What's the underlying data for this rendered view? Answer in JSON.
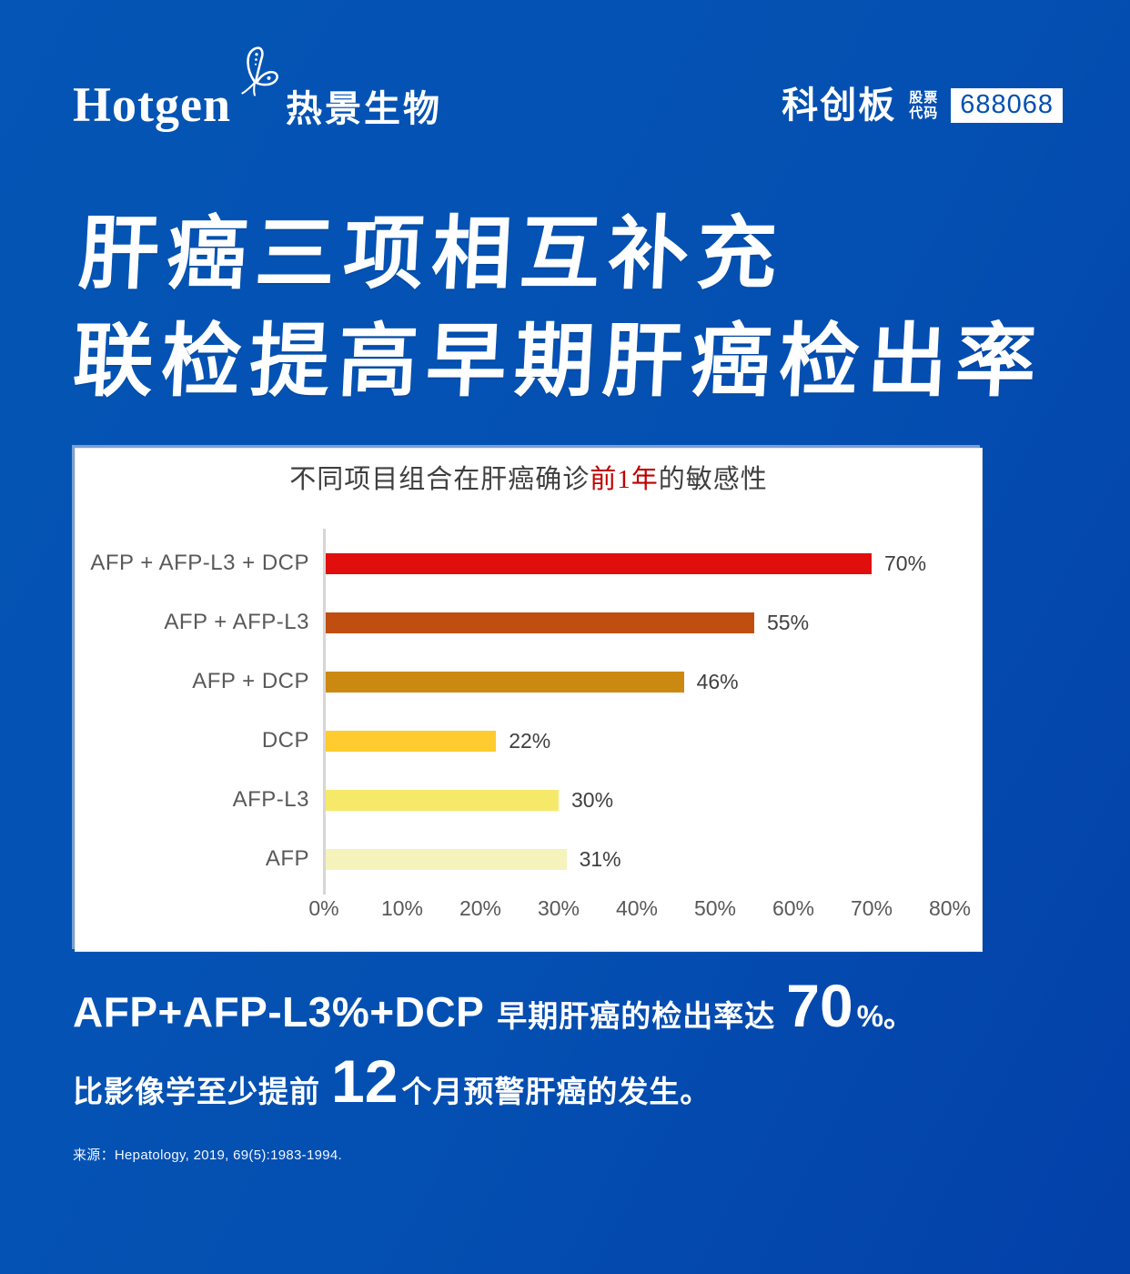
{
  "header": {
    "logo": {
      "brand_en": "Hotgen",
      "brand_cn": "热景生物"
    },
    "board": "科创板",
    "stock_label_line1": "股票",
    "stock_label_line2": "代码",
    "stock_code": "688068"
  },
  "hero": {
    "title_line1": "肝癌三项相互补充",
    "title_line2": "联检提高早期肝癌检出率"
  },
  "chart_data": {
    "type": "bar",
    "orientation": "horizontal",
    "title_prefix": "不同项目组合在肝癌确诊",
    "title_highlight": "前1年",
    "title_suffix": "的敏感性",
    "highlight_color": "#c00000",
    "categories": [
      "AFP + AFP-L3 + DCP",
      "AFP + AFP-L3",
      "AFP + DCP",
      "DCP",
      "AFP-L3",
      "AFP"
    ],
    "values": [
      70,
      55,
      46,
      22,
      30,
      31
    ],
    "value_labels": [
      "70%",
      "55%",
      "46%",
      "22%",
      "30%",
      "31%"
    ],
    "bar_colors": [
      "#e10e0e",
      "#c04e10",
      "#cc8912",
      "#ffcb2f",
      "#f6e96a",
      "#f6f2bc"
    ],
    "x_ticks": [
      "0%",
      "10%",
      "20%",
      "30%",
      "40%",
      "50%",
      "60%",
      "70%",
      "80%"
    ],
    "xlim": [
      0,
      80
    ],
    "grid": false,
    "legend": false,
    "axis_color": "#d6d6d6",
    "label_color": "#595959",
    "value_color": "#404040"
  },
  "callout": {
    "line1_latin": "AFP+AFP-L3%+DCP",
    "line1_cn": "早期肝癌的检出率达",
    "line1_big": "70",
    "line1_tail": "%。",
    "line2_pre": "比影像学至少提前",
    "line2_big": "12",
    "line2_post": "个月预警肝癌的发生。"
  },
  "source": {
    "label": "来源：",
    "text": "Hepatology, 2019, 69(5):1983-1994."
  },
  "colors": {
    "background_top": "#0455b5",
    "background_bottom": "#0340a8",
    "stock_code_text": "#0450b0",
    "text_white": "#ffffff"
  }
}
